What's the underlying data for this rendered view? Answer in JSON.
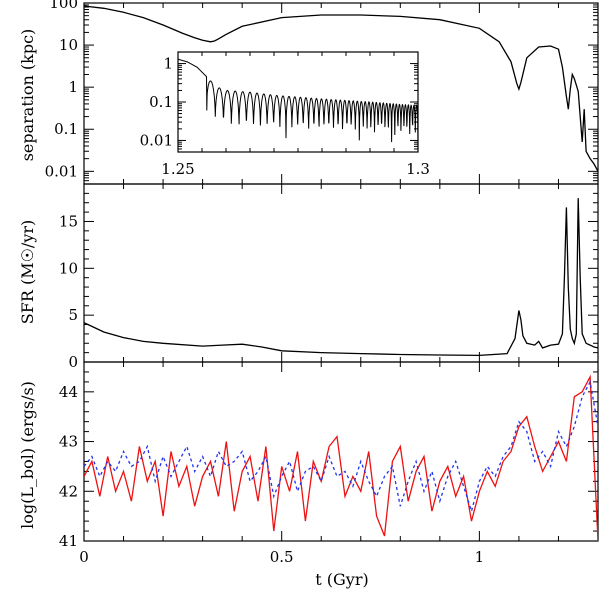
{
  "chart_data": [
    {
      "type": "line",
      "panel": "separation",
      "ylabel": "separation (kpc)",
      "yscale": "log",
      "ylim": [
        0.005,
        100
      ],
      "xlim": [
        0,
        1.3
      ],
      "yticks": [
        {
          "v": 100,
          "label": "100"
        },
        {
          "v": 10,
          "label": "10"
        },
        {
          "v": 1,
          "label": "1"
        },
        {
          "v": 0.1,
          "label": "0.1"
        },
        {
          "v": 0.01,
          "label": "0.01"
        }
      ],
      "series": [
        {
          "name": "separation",
          "color": "#000000",
          "x": [
            0,
            0.05,
            0.1,
            0.15,
            0.2,
            0.25,
            0.28,
            0.3,
            0.32,
            0.33,
            0.34,
            0.36,
            0.4,
            0.5,
            0.6,
            0.7,
            0.8,
            0.9,
            1.0,
            1.05,
            1.08,
            1.095,
            1.1,
            1.105,
            1.12,
            1.15,
            1.18,
            1.2,
            1.21,
            1.22,
            1.225,
            1.23,
            1.235,
            1.24,
            1.25,
            1.255,
            1.26,
            1.265,
            1.27,
            1.28,
            1.29,
            1.3
          ],
          "y": [
            85,
            75,
            60,
            45,
            30,
            19,
            15,
            13,
            12,
            12.5,
            14,
            18,
            28,
            45,
            52,
            52,
            48,
            40,
            25,
            12,
            4,
            1.2,
            0.9,
            1.3,
            5,
            9,
            9.5,
            8,
            3,
            0.6,
            0.3,
            0.9,
            2,
            1.6,
            0.8,
            0.2,
            0.05,
            0.3,
            0.03,
            0.02,
            0.015,
            0.01
          ]
        }
      ],
      "inset": {
        "xlim": [
          1.25,
          1.3
        ],
        "ylim": [
          0.005,
          2
        ],
        "xticks": [
          {
            "v": 1.25,
            "label": "1.25"
          },
          {
            "v": 1.3,
            "label": "1.3"
          }
        ],
        "yticks": [
          {
            "v": 1,
            "label": "1"
          },
          {
            "v": 0.1,
            "label": "0.1"
          },
          {
            "v": 0.01,
            "label": "0.01"
          }
        ],
        "envelope": {
          "x": [
            1.25,
            1.252,
            1.254,
            1.256,
            1.258,
            1.26,
            1.265,
            1.27,
            1.28,
            1.29,
            1.3
          ],
          "ymax": [
            1.3,
            1.1,
            0.8,
            0.45,
            0.25,
            0.2,
            0.18,
            0.15,
            0.12,
            0.1,
            0.08
          ],
          "ymin": [
            1.3,
            0.9,
            0.4,
            0.06,
            0.02,
            0.015,
            0.012,
            0.012,
            0.01,
            0.01,
            0.008
          ]
        }
      }
    },
    {
      "type": "line",
      "panel": "sfr",
      "ylabel": "SFR (M☉/yr)",
      "ylim": [
        0,
        19
      ],
      "xlim": [
        0,
        1.3
      ],
      "yticks": [
        {
          "v": 0,
          "label": "0"
        },
        {
          "v": 5,
          "label": "5"
        },
        {
          "v": 10,
          "label": "10"
        },
        {
          "v": 15,
          "label": "15"
        }
      ],
      "series": [
        {
          "name": "SFR",
          "color": "#000000",
          "x": [
            0,
            0.02,
            0.05,
            0.1,
            0.15,
            0.2,
            0.3,
            0.35,
            0.4,
            0.45,
            0.5,
            0.6,
            0.7,
            0.8,
            0.9,
            1.0,
            1.07,
            1.09,
            1.1,
            1.105,
            1.11,
            1.12,
            1.14,
            1.15,
            1.16,
            1.18,
            1.2,
            1.21,
            1.215,
            1.22,
            1.225,
            1.23,
            1.235,
            1.24,
            1.245,
            1.25,
            1.255,
            1.26,
            1.265,
            1.27,
            1.28,
            1.29,
            1.3
          ],
          "y": [
            4.2,
            3.8,
            3.2,
            2.6,
            2.2,
            2.0,
            1.7,
            1.8,
            1.9,
            1.6,
            1.2,
            1.0,
            0.9,
            0.8,
            0.75,
            0.7,
            0.9,
            2.5,
            5.5,
            4.5,
            2.8,
            2.0,
            1.8,
            2.2,
            1.5,
            1.8,
            1.9,
            3.0,
            9,
            16.5,
            8,
            3.5,
            2.5,
            2.0,
            3.0,
            17.5,
            9,
            3.0,
            2.5,
            2.0,
            1.8,
            1.6,
            1.5
          ]
        }
      ]
    },
    {
      "type": "line",
      "panel": "luminosity",
      "ylabel": "log(L_bol) (ergs/s)",
      "ylim": [
        41,
        44.6
      ],
      "xlim": [
        0,
        1.3
      ],
      "xlabel": "t (Gyr)",
      "xticks": [
        {
          "v": 0,
          "label": "0"
        },
        {
          "v": 0.5,
          "label": "0.5"
        },
        {
          "v": 1,
          "label": "1"
        }
      ],
      "yticks": [
        {
          "v": 41,
          "label": "41"
        },
        {
          "v": 42,
          "label": "42"
        },
        {
          "v": 43,
          "label": "43"
        },
        {
          "v": 44,
          "label": "44"
        }
      ],
      "series": [
        {
          "name": "solid",
          "color": "#ee1111",
          "dash": "",
          "x": [
            0,
            0.02,
            0.04,
            0.06,
            0.08,
            0.1,
            0.12,
            0.14,
            0.16,
            0.18,
            0.2,
            0.22,
            0.24,
            0.26,
            0.28,
            0.3,
            0.32,
            0.34,
            0.36,
            0.38,
            0.4,
            0.42,
            0.44,
            0.46,
            0.48,
            0.5,
            0.52,
            0.54,
            0.56,
            0.58,
            0.6,
            0.62,
            0.64,
            0.66,
            0.68,
            0.7,
            0.72,
            0.74,
            0.76,
            0.78,
            0.8,
            0.82,
            0.84,
            0.86,
            0.88,
            0.9,
            0.92,
            0.94,
            0.96,
            0.98,
            1.0,
            1.02,
            1.04,
            1.06,
            1.08,
            1.1,
            1.12,
            1.14,
            1.16,
            1.18,
            1.2,
            1.22,
            1.24,
            1.26,
            1.28,
            1.3
          ],
          "y": [
            42.3,
            42.6,
            41.9,
            42.7,
            42.0,
            42.4,
            41.8,
            42.9,
            42.2,
            42.6,
            41.5,
            42.8,
            42.1,
            42.5,
            41.7,
            42.3,
            42.6,
            41.9,
            43.0,
            41.6,
            42.4,
            42.7,
            41.8,
            42.9,
            41.2,
            42.5,
            42.0,
            42.8,
            41.4,
            42.6,
            42.2,
            42.9,
            43.1,
            41.9,
            42.3,
            42.0,
            42.8,
            41.5,
            41.1,
            42.6,
            42.9,
            41.8,
            42.4,
            42.7,
            41.6,
            42.2,
            42.5,
            41.9,
            42.3,
            41.4,
            42.0,
            42.4,
            42.1,
            42.6,
            42.8,
            43.3,
            43.5,
            42.9,
            42.4,
            42.7,
            43.0,
            42.6,
            43.9,
            44.0,
            44.3,
            41.0
          ]
        },
        {
          "name": "dotted",
          "color": "#2233ee",
          "dash": "3,3",
          "x": [
            0,
            0.02,
            0.04,
            0.06,
            0.08,
            0.1,
            0.12,
            0.14,
            0.16,
            0.18,
            0.2,
            0.22,
            0.24,
            0.26,
            0.28,
            0.3,
            0.32,
            0.34,
            0.36,
            0.38,
            0.4,
            0.42,
            0.44,
            0.46,
            0.48,
            0.5,
            0.52,
            0.54,
            0.56,
            0.58,
            0.6,
            0.62,
            0.64,
            0.66,
            0.68,
            0.7,
            0.72,
            0.74,
            0.76,
            0.78,
            0.8,
            0.82,
            0.84,
            0.86,
            0.88,
            0.9,
            0.92,
            0.94,
            0.96,
            0.98,
            1.0,
            1.02,
            1.04,
            1.06,
            1.08,
            1.1,
            1.12,
            1.14,
            1.16,
            1.18,
            1.2,
            1.22,
            1.24,
            1.26,
            1.28,
            1.3
          ],
          "y": [
            42.5,
            42.7,
            42.3,
            42.6,
            42.4,
            42.8,
            42.5,
            42.6,
            42.9,
            42.2,
            42.7,
            42.3,
            42.6,
            42.9,
            42.4,
            42.7,
            42.3,
            42.8,
            42.5,
            42.6,
            42.8,
            42.2,
            42.4,
            42.7,
            41.9,
            42.3,
            42.6,
            42.0,
            42.4,
            42.5,
            42.2,
            42.7,
            42.3,
            42.4,
            42.1,
            42.6,
            42.2,
            41.9,
            42.3,
            42.5,
            41.7,
            42.2,
            42.6,
            42.0,
            42.4,
            41.8,
            42.3,
            42.6,
            42.1,
            41.6,
            42.2,
            42.5,
            42.3,
            42.7,
            42.9,
            43.4,
            43.2,
            42.6,
            42.8,
            42.5,
            43.2,
            42.9,
            43.3,
            43.9,
            44.2,
            43.3
          ]
        }
      ]
    }
  ]
}
